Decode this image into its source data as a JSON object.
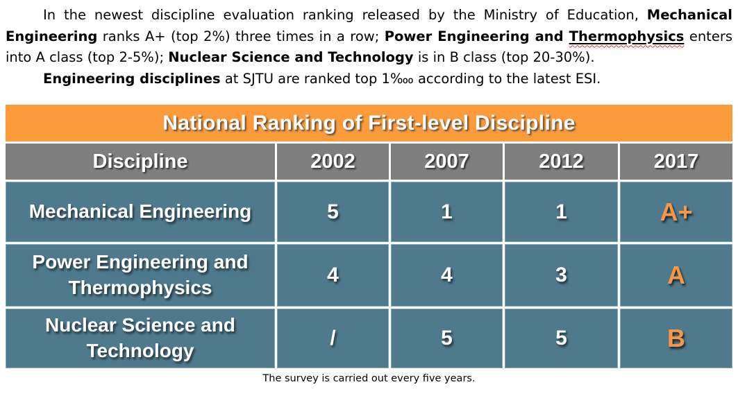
{
  "intro": {
    "p1": {
      "s0": "In the newest discipline evaluation ranking released by the Ministry of Education, ",
      "s1": "Mechanical Engineering",
      "s2": " ranks A+ (top 2%) three times in a row; ",
      "s3": "Power Engineering and ",
      "s4": "Thermophysics",
      "s5": " enters into A class (top 2-5%); ",
      "s6": "Nuclear Science and Technology",
      "s7": " is in B class (top 20-30%)."
    },
    "p2": {
      "s0": "Engineering disciplines",
      "s1": " at SJTU are ranked top 1‱ according to the latest ESI."
    }
  },
  "table": {
    "title": "National Ranking of First-level Discipline",
    "columns": [
      "Discipline",
      "2002",
      "2007",
      "2012",
      "2017"
    ],
    "rows": [
      {
        "discipline": "Mechanical Engineering",
        "c2002": "5",
        "c2007": "1",
        "c2012": "1",
        "grade": "A+"
      },
      {
        "discipline": "Power Engineering and Thermophysics",
        "c2002": "4",
        "c2007": "4",
        "c2012": "3",
        "grade": "A"
      },
      {
        "discipline": "Nuclear Science and Technology",
        "c2002": "/",
        "c2007": "5",
        "c2012": "5",
        "grade": "B"
      }
    ],
    "caption": "The survey is carried out every five years."
  },
  "colors": {
    "title_bg": "#FB9B3C",
    "header_bg": "#7F7F7F",
    "body_bg": "#4F7A8D",
    "grade_text": "#F79646",
    "spellcheck_underline": "#FF2A2A"
  }
}
